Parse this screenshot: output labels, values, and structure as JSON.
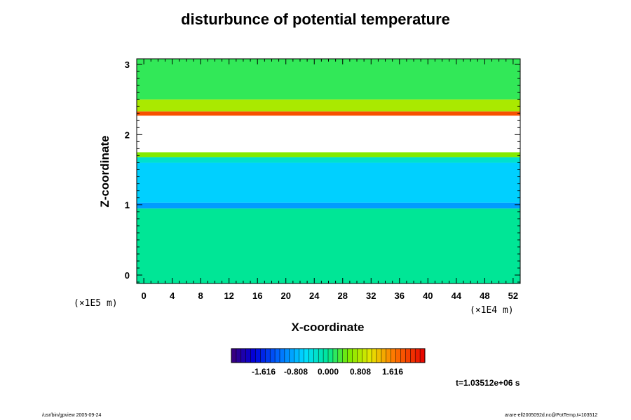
{
  "chart_data": {
    "type": "heatmap",
    "title": "disturbunce of potential temperature",
    "xlabel": "X-coordinate",
    "ylabel": "Z-coordinate",
    "x_scale_label": "(×1E4 m)",
    "y_scale_label": "(×1E5 m)",
    "xlim": [
      -1,
      53
    ],
    "ylim": [
      -0.12,
      3.08
    ],
    "x_ticks": [
      0,
      4,
      8,
      12,
      16,
      20,
      24,
      28,
      32,
      36,
      40,
      44,
      48,
      52
    ],
    "y_ticks": [
      0,
      1,
      2,
      3
    ],
    "colorbar_ticks": [
      -1.616,
      -0.808,
      0.0,
      0.808,
      1.616
    ],
    "colorbar_range": [
      -2.424,
      2.424
    ],
    "time_label": "t=1.03512e+06 s",
    "bands": [
      {
        "z0": -0.12,
        "z1": 0.95,
        "value": 0.0
      },
      {
        "z0": 0.95,
        "z1": 1.03,
        "value": -0.95
      },
      {
        "z0": 1.03,
        "z1": 1.6,
        "value": -0.65
      },
      {
        "z0": 1.6,
        "z1": 1.68,
        "value": -0.3
      },
      {
        "z0": 1.68,
        "z1": 1.75,
        "value": 0.55
      },
      {
        "z0": 1.75,
        "z1": 2.27,
        "value": 9.0
      },
      {
        "z0": 2.27,
        "z1": 2.33,
        "value": 1.9
      },
      {
        "z0": 2.33,
        "z1": 2.5,
        "value": 0.75
      },
      {
        "z0": 2.5,
        "z1": 3.08,
        "value": 0.2
      }
    ]
  },
  "footer": {
    "left": "/usr/bin/gpview 2005-09-24",
    "right": "arare-ell2005092d.nc@PotTemp,t=103512"
  }
}
